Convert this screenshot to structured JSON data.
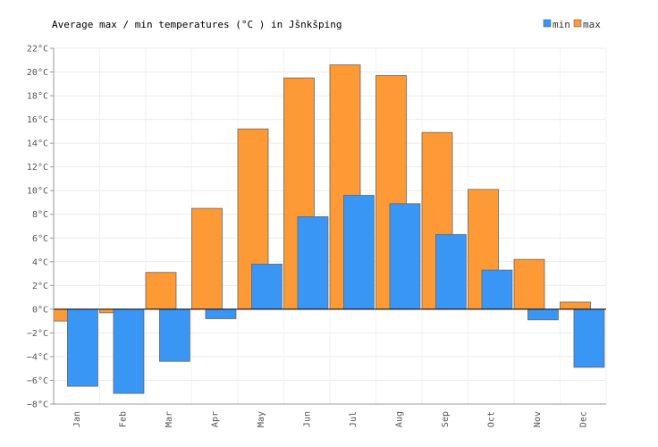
{
  "chart_data": {
    "type": "bar",
    "title": "Average max / min temperatures (°C ) in Jšnkšping",
    "categories": [
      "Jan",
      "Feb",
      "Mar",
      "Apr",
      "May",
      "Jun",
      "Jul",
      "Aug",
      "Sep",
      "Oct",
      "Nov",
      "Dec"
    ],
    "series": [
      {
        "name": "min",
        "color": "#3a96f5",
        "values": [
          -6.5,
          -7.1,
          -4.4,
          -0.8,
          3.8,
          7.8,
          9.6,
          8.9,
          6.3,
          3.3,
          -0.9,
          -4.9
        ]
      },
      {
        "name": "max",
        "color": "#fd9a35",
        "values": [
          -1.0,
          -0.3,
          3.1,
          8.5,
          15.2,
          19.5,
          20.6,
          19.7,
          14.9,
          10.1,
          4.2,
          0.6
        ]
      }
    ],
    "ylim": [
      -8,
      22
    ],
    "yticks": [
      "−8°C",
      "−6°C",
      "−4°C",
      "−2°C",
      "0°C",
      "2°C",
      "4°C",
      "6°C",
      "8°C",
      "10°C",
      "12°C",
      "14°C",
      "16°C",
      "18°C",
      "20°C",
      "22°C"
    ],
    "grid": true,
    "legend": "top-right"
  }
}
